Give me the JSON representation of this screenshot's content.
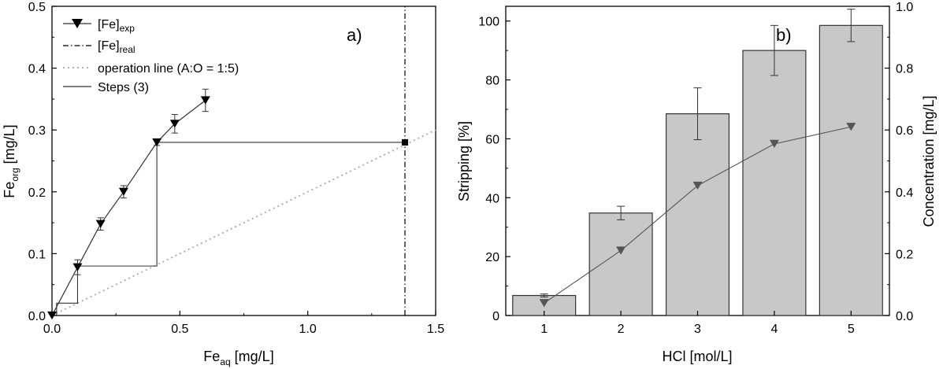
{
  "chart_data": [
    {
      "type": "line",
      "panel_label": "a)",
      "xlabel": {
        "main": "Fe",
        "sub": "aq",
        "rest": " [mg/L]"
      },
      "ylabel": {
        "main": "Fe",
        "sub": "org",
        "rest": " [mg/L]"
      },
      "xlim": [
        0,
        1.5
      ],
      "ylim": [
        0,
        0.5
      ],
      "xticks": [
        "0.0",
        "0.5",
        "1.0",
        "1.5"
      ],
      "yticks": [
        "0.0",
        "0.1",
        "0.2",
        "0.3",
        "0.4",
        "0.5"
      ],
      "grid": false,
      "legend_position": "top-left",
      "series": [
        {
          "name": "[Fe]",
          "name_sub": "exp",
          "x": [
            0.0,
            0.1,
            0.19,
            0.28,
            0.41,
            0.48,
            0.6
          ],
          "y": [
            0.0,
            0.078,
            0.148,
            0.2,
            0.28,
            0.31,
            0.348
          ],
          "err": [
            0,
            0.012,
            0.01,
            0.01,
            0.005,
            0.015,
            0.018
          ],
          "marker": "triangle-down"
        },
        {
          "name": "[Fe]",
          "name_sub": "real",
          "x": [
            1.38,
            1.38
          ],
          "y": [
            0,
            0.5
          ],
          "marker": "none",
          "style": "dash-dot"
        },
        {
          "name": "operation line (A:O = 1:5)",
          "x": [
            0,
            1.5
          ],
          "y": [
            0,
            0.3
          ],
          "style": "dotted",
          "color": "#b0b0b0"
        },
        {
          "name": "Steps (3)",
          "x": [
            1.38,
            0.41,
            0.41,
            0.1,
            0.1,
            0.018,
            0.018
          ],
          "y": [
            0.28,
            0.28,
            0.08,
            0.08,
            0.02,
            0.02,
            0.0
          ],
          "style": "solid"
        }
      ],
      "point_marker": {
        "x": 1.38,
        "y": 0.28,
        "shape": "square"
      }
    },
    {
      "type": "bar",
      "panel_label": "b)",
      "xlabel": "HCl [mol/L]",
      "ylabel": "Stripping [%]",
      "y2label": "Concentration [mg/L]",
      "categories": [
        "1",
        "2",
        "3",
        "4",
        "5"
      ],
      "ylim": [
        0,
        105
      ],
      "y2lim": [
        0,
        1.0
      ],
      "yticks": [
        "0",
        "20",
        "40",
        "60",
        "80",
        "100"
      ],
      "y2ticks": [
        "0.0",
        "0.2",
        "0.4",
        "0.6",
        "0.8",
        "1.0"
      ],
      "grid": false,
      "series": [
        {
          "axis": "left",
          "values": [
            6.8,
            34.8,
            68.5,
            90.0,
            98.5
          ],
          "err": [
            0.5,
            2.3,
            8.8,
            8.5,
            5.5
          ],
          "color": "#c8c8c8"
        },
        {
          "axis": "right",
          "type": "line",
          "values": [
            0.04,
            0.21,
            0.42,
            0.555,
            0.61
          ],
          "marker": "triangle-down",
          "color": "#555555"
        }
      ]
    }
  ]
}
